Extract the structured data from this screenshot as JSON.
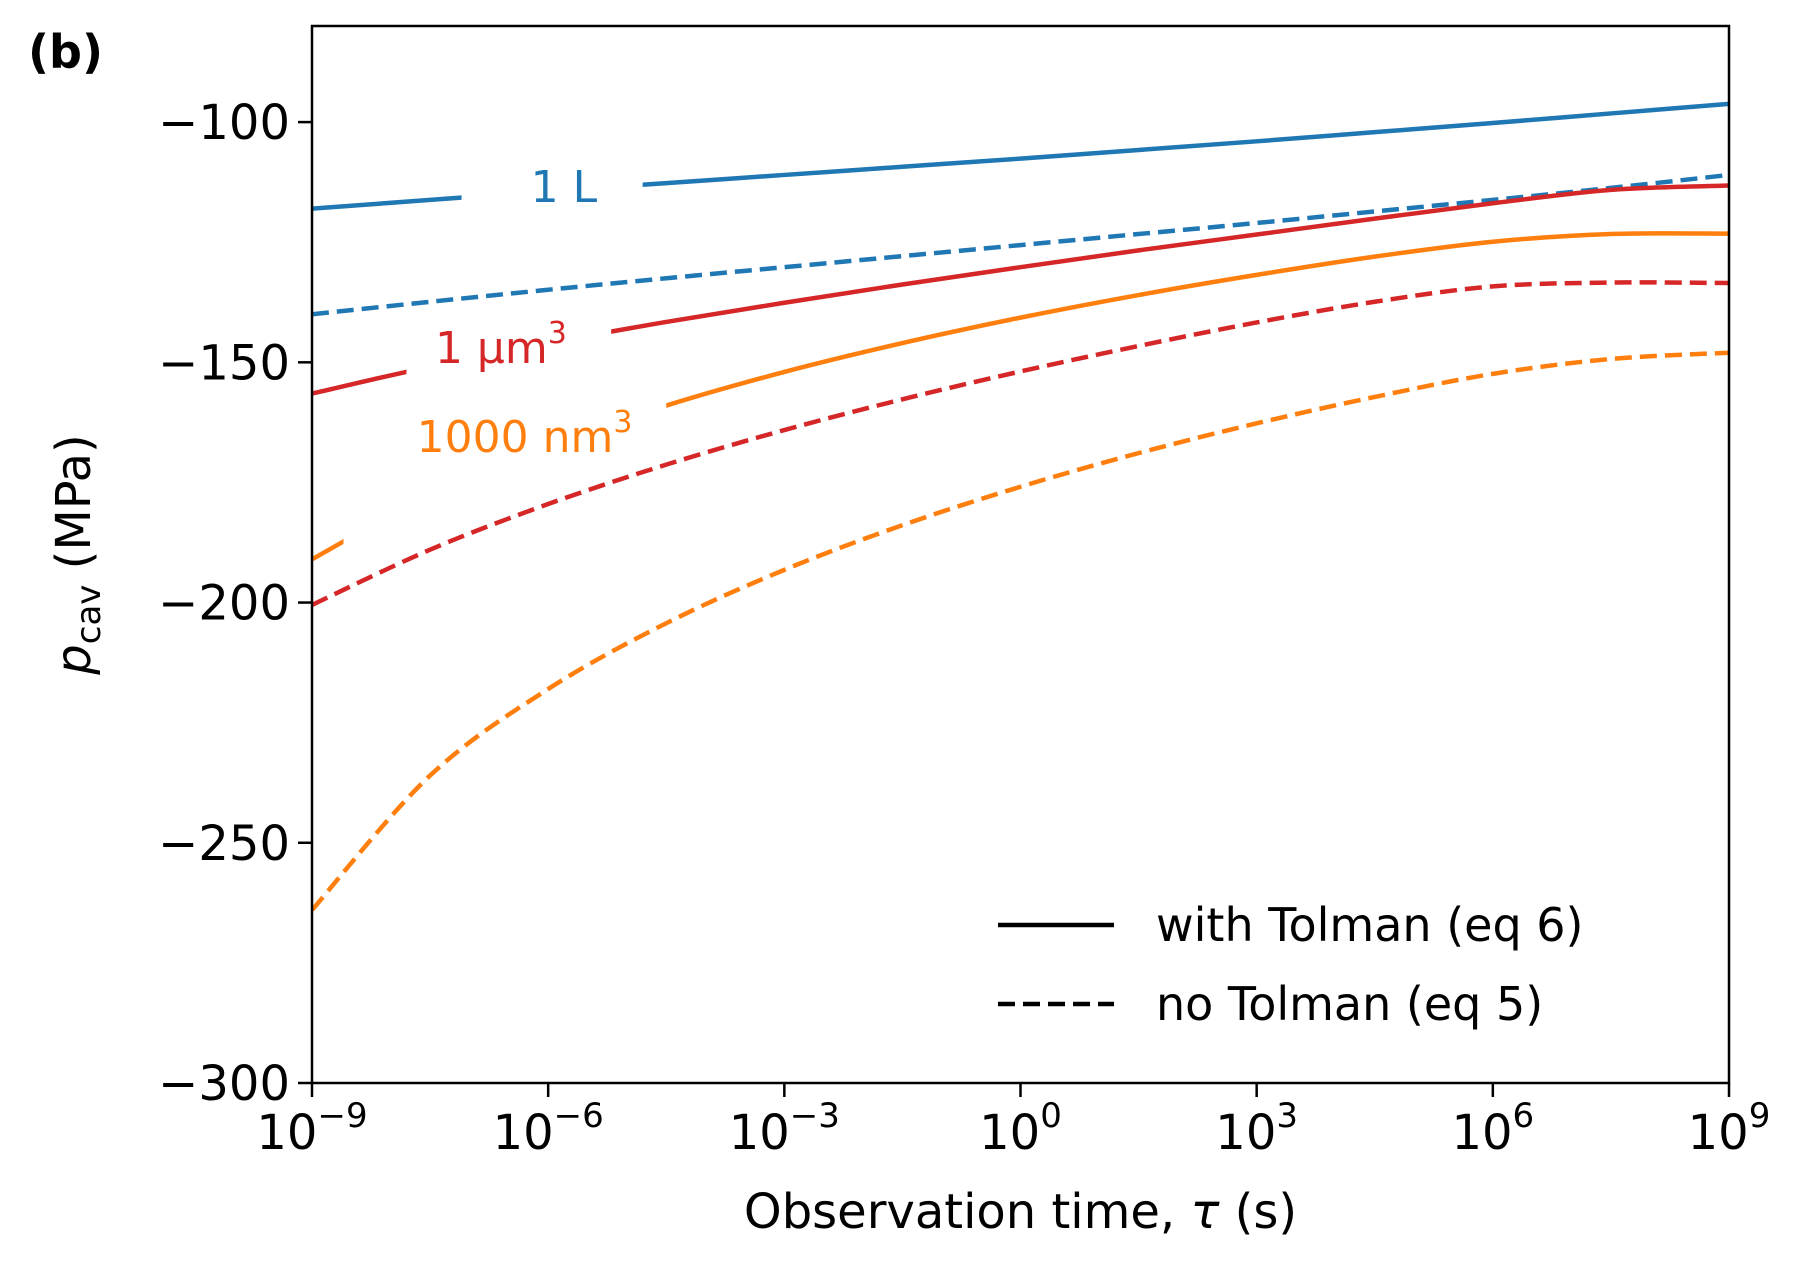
{
  "panel_label": "(b)",
  "chart_data": {
    "type": "line",
    "title": "",
    "xlabel": {
      "text": "Observation time, ",
      "symbol": "τ",
      "unit": " (s)"
    },
    "ylabel": {
      "symbol": "p",
      "subscript": "cav",
      "unit": " (MPa)"
    },
    "xscale": "log",
    "xlim_exp": [
      -9,
      9
    ],
    "ylim": [
      -300,
      -80
    ],
    "x_ticks": [
      {
        "base": "10",
        "exp": "−9",
        "value": -9
      },
      {
        "base": "10",
        "exp": "−6",
        "value": -6
      },
      {
        "base": "10",
        "exp": "−3",
        "value": -3
      },
      {
        "base": "10",
        "exp": "0",
        "value": 0
      },
      {
        "base": "10",
        "exp": "3",
        "value": 3
      },
      {
        "base": "10",
        "exp": "6",
        "value": 6
      },
      {
        "base": "10",
        "exp": "9",
        "value": 9
      }
    ],
    "y_ticks": [
      {
        "label": "−100",
        "value": -100
      },
      {
        "label": "−150",
        "value": -150
      },
      {
        "label": "−200",
        "value": -200
      },
      {
        "label": "−250",
        "value": -250
      },
      {
        "label": "−300",
        "value": -300
      }
    ],
    "x_log10": [
      -9,
      -7.5,
      -6,
      -4.5,
      -3,
      -1.5,
      0,
      1.5,
      3,
      4.5,
      6,
      7.5,
      9
    ],
    "series": [
      {
        "name": "1 L, with Tolman",
        "color": "#1f77b4",
        "style": "solid",
        "y": [
          -118.0,
          -116.2,
          -114.4,
          -112.7,
          -111.0,
          -109.3,
          -107.6,
          -105.8,
          -104.0,
          -102.1,
          -100.2,
          -98.2,
          -96.2
        ]
      },
      {
        "name": "1 L, no Tolman",
        "color": "#1f77b4",
        "style": "dashed",
        "y": [
          -140.0,
          -137.4,
          -134.9,
          -132.5,
          -130.2,
          -127.9,
          -125.6,
          -123.3,
          -121.0,
          -118.6,
          -116.2,
          -113.7,
          -111.0
        ]
      },
      {
        "name": "1 µm³, with Tolman",
        "color": "#d62728",
        "style": "solid",
        "y": [
          -156.5,
          -150.9,
          -146.0,
          -141.6,
          -137.6,
          -133.8,
          -130.2,
          -126.7,
          -123.4,
          -120.1,
          -116.9,
          -114.1,
          -113.2
        ]
      },
      {
        "name": "1 µm³, no Tolman",
        "color": "#d62728",
        "style": "dashed",
        "y": [
          -200.5,
          -189.0,
          -179.5,
          -171.3,
          -164.1,
          -157.7,
          -151.9,
          -146.6,
          -141.7,
          -137.4,
          -134.2,
          -133.4,
          -133.5
        ]
      },
      {
        "name": "1000 nm³, with Tolman",
        "color": "#ff7f0e",
        "style": "solid",
        "y": [
          -191.0,
          -177.5,
          -167.3,
          -159.0,
          -152.0,
          -146.0,
          -140.7,
          -136.0,
          -131.8,
          -128.0,
          -124.9,
          -123.3,
          -123.2
        ]
      },
      {
        "name": "1000 nm³, no Tolman",
        "color": "#ff7f0e",
        "style": "dashed",
        "y": [
          -264.0,
          -236.0,
          -218.0,
          -204.3,
          -193.2,
          -183.9,
          -175.9,
          -168.9,
          -162.7,
          -157.2,
          -152.4,
          -149.3,
          -148.0
        ]
      }
    ],
    "inline_labels": [
      {
        "text": "1 L",
        "sup": "",
        "color": "#1f77b4",
        "x": -5.8,
        "y": -113.5,
        "gap": [
          -7.1,
          -4.8
        ]
      },
      {
        "text": "1 µm",
        "sup": "3",
        "color": "#d62728",
        "x": -6.6,
        "y": -147.0,
        "gap": [
          -7.8,
          -5.2
        ]
      },
      {
        "text": "1000 nm",
        "sup": "3",
        "color": "#ff7f0e",
        "x": -6.3,
        "y": -165.5,
        "gap": [
          -8.6,
          -4.5
        ]
      }
    ],
    "legend": {
      "position": "bottom-right",
      "entries": [
        {
          "label": "with Tolman (eq 6)",
          "style": "solid"
        },
        {
          "label": "no Tolman (eq 5)",
          "style": "dashed"
        }
      ]
    }
  }
}
